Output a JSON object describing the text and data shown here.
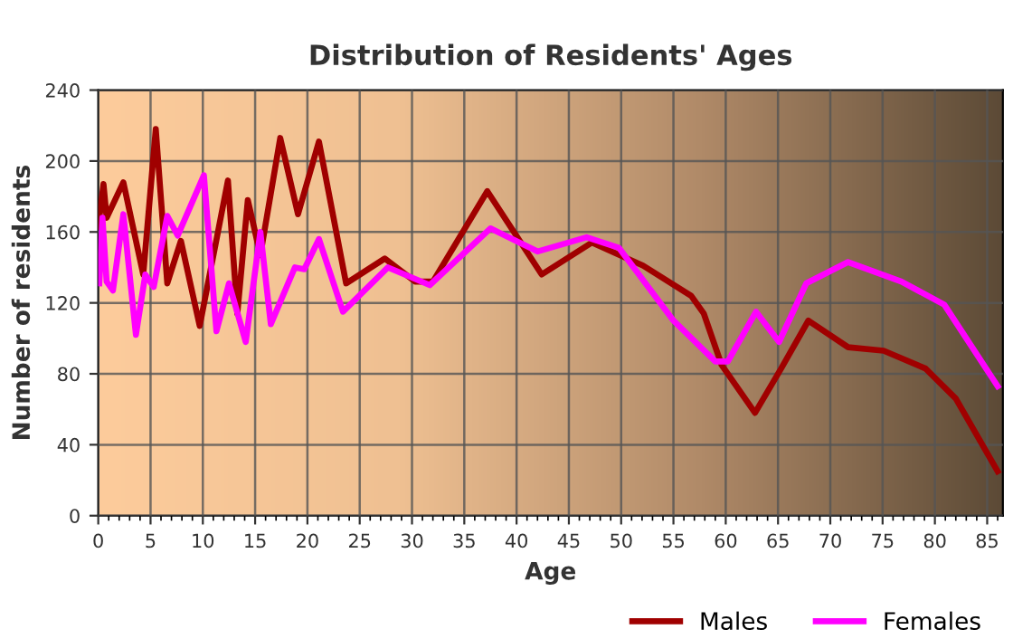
{
  "chart_data": {
    "type": "line",
    "title": "Distribution of Residents' Ages",
    "xlabel": "Age",
    "ylabel": "Number of residents",
    "xlim": [
      0,
      86.5
    ],
    "ylim": [
      0,
      240
    ],
    "xticks": [
      0,
      5,
      10,
      15,
      20,
      25,
      30,
      35,
      40,
      45,
      50,
      55,
      60,
      65,
      70,
      75,
      80,
      85
    ],
    "yticks": [
      0,
      40,
      80,
      120,
      160,
      200,
      240
    ],
    "grid": true,
    "legend": "bottom",
    "marker": "none",
    "line_style": "solid",
    "series": [
      {
        "name": "Males",
        "color": "#a00000",
        "x": [
          0,
          0.5,
          0.8,
          2.4,
          4.3,
          5.5,
          6.6,
          7.9,
          9.7,
          12.4,
          13.3,
          14.3,
          15.5,
          17.4,
          19.1,
          21.1,
          23.7,
          27.4,
          30.3,
          32,
          37.2,
          42.4,
          47.2,
          52.1,
          56.7,
          57.9,
          59.6,
          62.8,
          65.3,
          67.9,
          71.7,
          75.1,
          79.1,
          82,
          86
        ],
        "values": [
          163,
          187,
          168,
          188,
          136,
          218,
          131,
          155,
          107,
          189,
          114,
          178,
          147,
          213,
          170,
          211,
          131,
          145,
          132,
          132,
          183,
          136,
          154,
          141,
          124,
          114,
          85,
          58,
          83,
          110,
          95,
          93,
          83,
          66,
          25
        ]
      },
      {
        "name": "Females",
        "color": "#ff00ff",
        "x": [
          0.1,
          0.4,
          0.8,
          1.4,
          2.4,
          3.6,
          4.5,
          5.3,
          6.6,
          7.6,
          10.1,
          11.3,
          12.5,
          14.1,
          15.5,
          16.5,
          18.8,
          19.7,
          21.1,
          23.4,
          27.7,
          31.7,
          37.5,
          42,
          46.7,
          49.8,
          55,
          59,
          60.2,
          62.9,
          65.1,
          67.7,
          71.7,
          76.8,
          80.9,
          86
        ],
        "values": [
          131,
          168,
          132,
          127,
          170,
          102,
          136,
          129,
          169,
          158,
          192,
          104,
          131,
          98,
          160,
          108,
          140,
          139,
          156,
          115,
          140,
          130,
          162,
          149,
          157,
          151,
          110,
          87,
          87,
          115,
          98,
          131,
          143,
          132,
          119,
          73
        ]
      }
    ]
  }
}
